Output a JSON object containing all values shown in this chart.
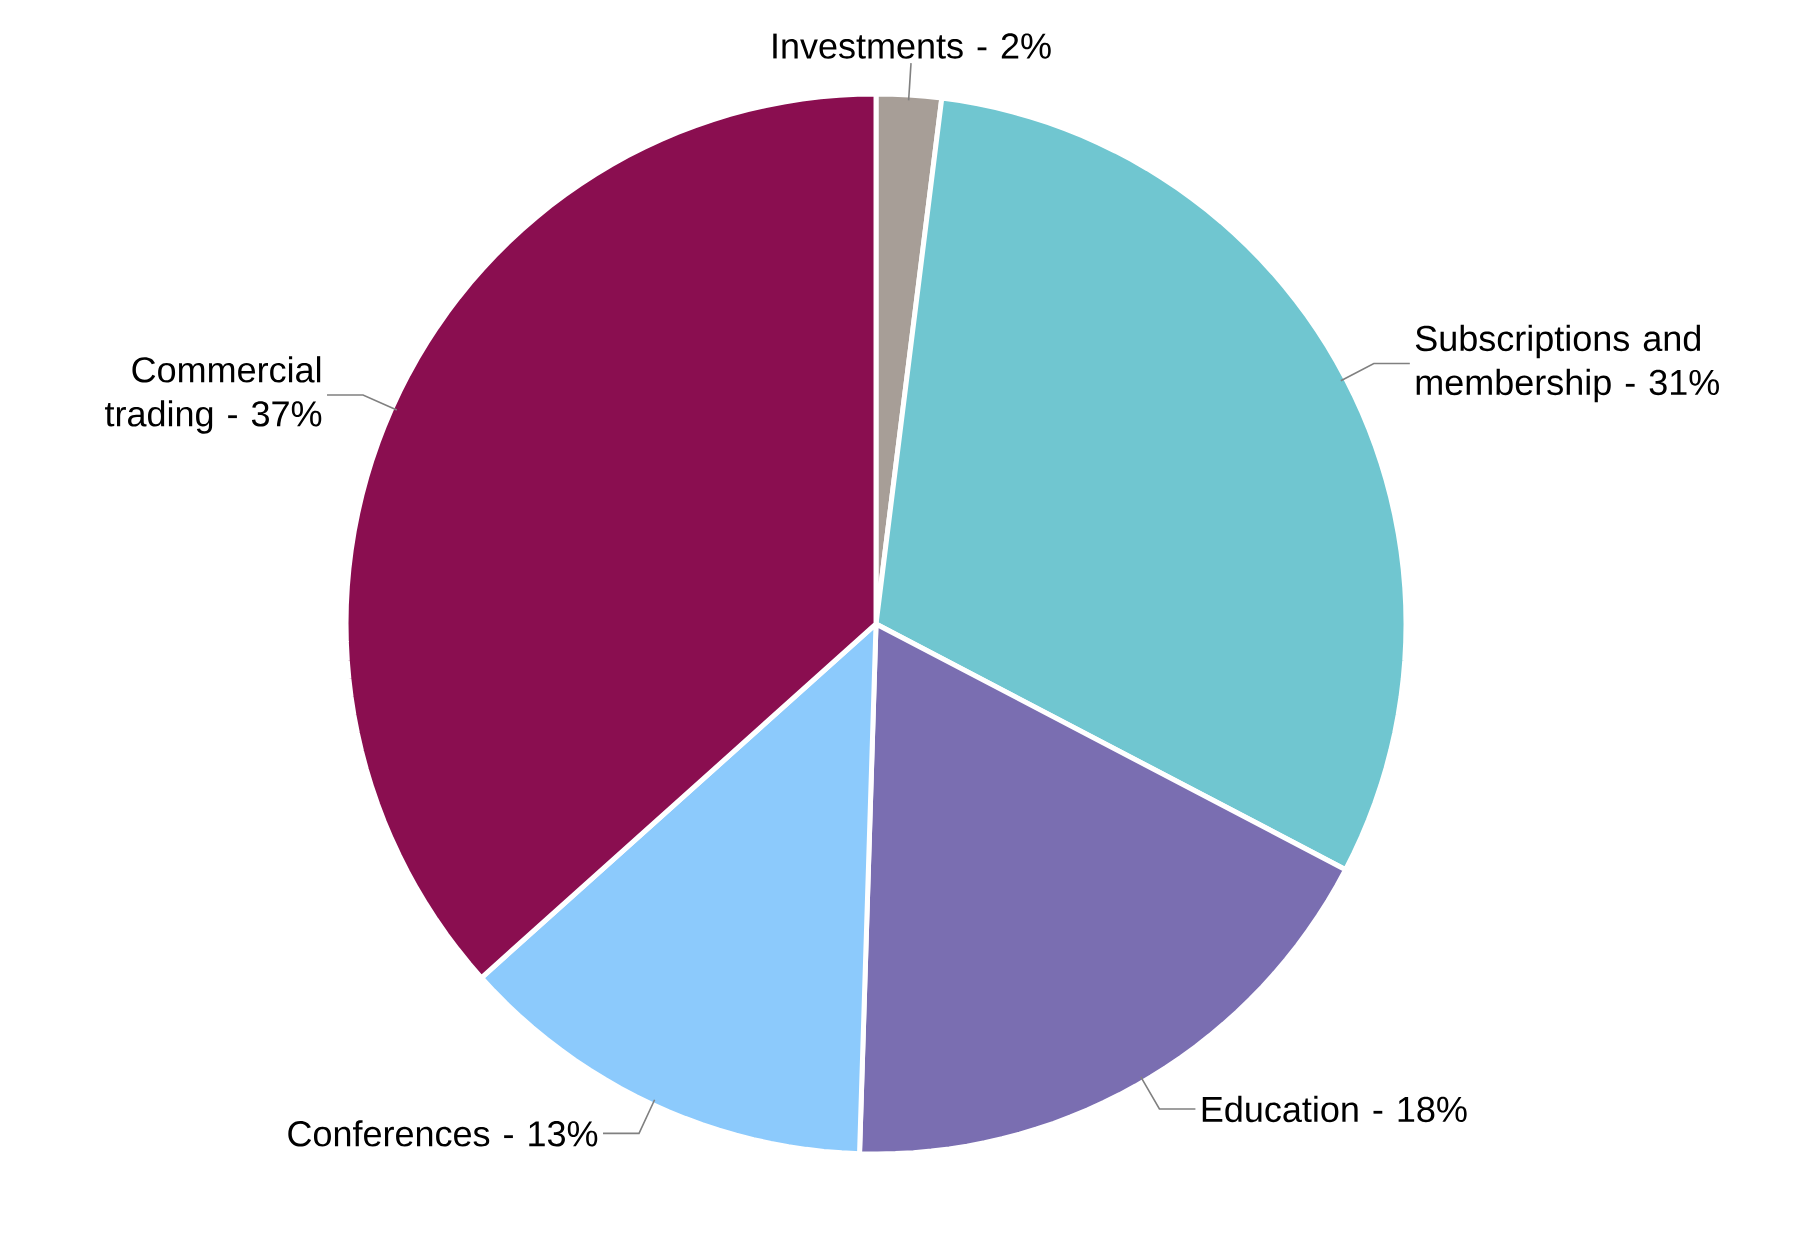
{
  "chart_data": {
    "type": "pie",
    "categories": [
      "Investments - 2%",
      "Subscriptions and membership - 31%",
      "Education  - 18%",
      "Conferences - 13%",
      "Commercial trading - 37%"
    ],
    "values": [
      2,
      31,
      18,
      13,
      37
    ],
    "colors": [
      "#a79e97",
      "#70c6d0",
      "#7a6eb1",
      "#8ccafc",
      "#8a0e50"
    ]
  }
}
